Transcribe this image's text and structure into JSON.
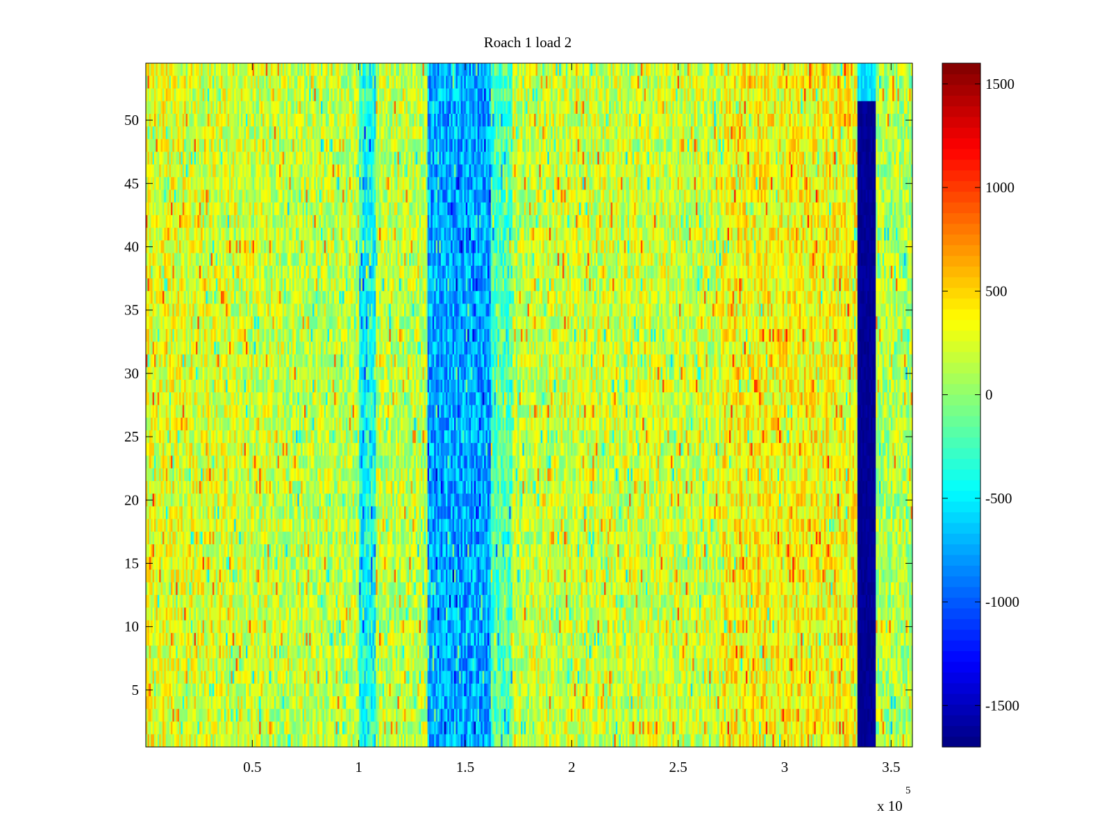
{
  "chart_data": {
    "type": "heatmap",
    "title": "Roach 1 load 2",
    "xlabel": "",
    "ylabel": "",
    "x_multiplier_label": "x 10",
    "x_multiplier_exponent": "5",
    "xlim": [
      0,
      360000
    ],
    "ylim": [
      0.5,
      54.5
    ],
    "x_ticks": [
      {
        "value": 50000,
        "label": "0.5"
      },
      {
        "value": 100000,
        "label": "1"
      },
      {
        "value": 150000,
        "label": "1.5"
      },
      {
        "value": 200000,
        "label": "2"
      },
      {
        "value": 250000,
        "label": "2.5"
      },
      {
        "value": 300000,
        "label": "3"
      },
      {
        "value": 350000,
        "label": "3.5"
      }
    ],
    "y_ticks": [
      {
        "value": 5,
        "label": "5"
      },
      {
        "value": 10,
        "label": "10"
      },
      {
        "value": 15,
        "label": "15"
      },
      {
        "value": 20,
        "label": "20"
      },
      {
        "value": 25,
        "label": "25"
      },
      {
        "value": 30,
        "label": "30"
      },
      {
        "value": 35,
        "label": "35"
      },
      {
        "value": 40,
        "label": "40"
      },
      {
        "value": 45,
        "label": "45"
      },
      {
        "value": 50,
        "label": "50"
      }
    ],
    "rows": 54,
    "colormap": "jet",
    "clim": [
      -1700,
      1600
    ],
    "colorbar_ticks": [
      {
        "value": 1500,
        "label": "1500"
      },
      {
        "value": 1000,
        "label": "1000"
      },
      {
        "value": 500,
        "label": "500"
      },
      {
        "value": 0,
        "label": "0"
      },
      {
        "value": -500,
        "label": "-500"
      },
      {
        "value": -1000,
        "label": "-1000"
      },
      {
        "value": -1500,
        "label": "-1500"
      }
    ],
    "features": {
      "background_level": 150,
      "left_warm_region": {
        "x": [
          0,
          60000
        ],
        "level": 300
      },
      "right_warm_region": {
        "x": [
          270000,
          335000
        ],
        "level": 350
      },
      "cool_band_1": {
        "x": [
          100000,
          108000
        ],
        "level": -400
      },
      "cool_band_2": {
        "x": [
          132000,
          162000
        ],
        "level": -750
      },
      "dark_band": {
        "x": [
          334000,
          343000
        ],
        "level": -1650
      }
    }
  }
}
